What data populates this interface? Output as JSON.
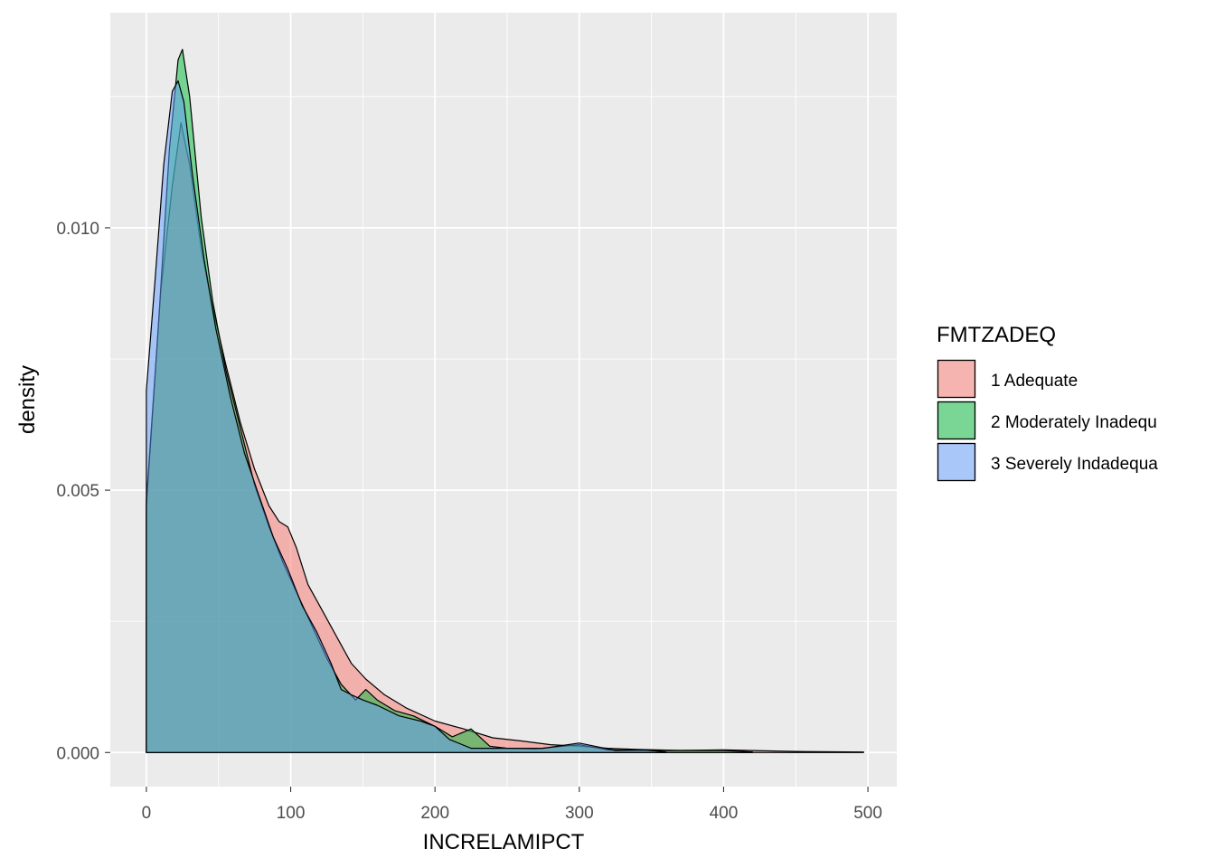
{
  "chart_data": {
    "type": "area",
    "subtype": "density",
    "title": "",
    "xlabel": "INCRELAMIPCT",
    "ylabel": "density",
    "xlim": [
      -25,
      520
    ],
    "ylim": [
      -0.00065,
      0.0141
    ],
    "x_ticks": [
      0,
      100,
      200,
      300,
      400,
      500
    ],
    "x_tick_labels": [
      "0",
      "100",
      "200",
      "300",
      "400",
      "500"
    ],
    "y_ticks": [
      0.0,
      0.005,
      0.01
    ],
    "y_tick_labels": [
      "0.000",
      "0.005",
      "0.010"
    ],
    "grid": true,
    "legend": {
      "title": "FMTZADEQ",
      "position": "right",
      "entries": [
        "1 Adequate",
        "2 Moderately Inadequ",
        "3 Severely Indadequa"
      ]
    },
    "series": [
      {
        "name": "1 Adequate",
        "color": "#F8766D",
        "points": [
          [
            0,
            0.0048
          ],
          [
            10,
            0.0088
          ],
          [
            18,
            0.0108
          ],
          [
            24,
            0.012
          ],
          [
            30,
            0.0112
          ],
          [
            38,
            0.0096
          ],
          [
            45,
            0.0086
          ],
          [
            55,
            0.0074
          ],
          [
            65,
            0.0063
          ],
          [
            75,
            0.0054
          ],
          [
            85,
            0.0047
          ],
          [
            92,
            0.0044
          ],
          [
            98,
            0.0043
          ],
          [
            104,
            0.0039
          ],
          [
            112,
            0.0032
          ],
          [
            122,
            0.0027
          ],
          [
            132,
            0.0022
          ],
          [
            142,
            0.0017
          ],
          [
            152,
            0.0014
          ],
          [
            165,
            0.0011
          ],
          [
            180,
            0.00085
          ],
          [
            200,
            0.0006
          ],
          [
            220,
            0.00045
          ],
          [
            240,
            0.00028
          ],
          [
            260,
            0.00022
          ],
          [
            280,
            0.00015
          ],
          [
            300,
            0.00012
          ],
          [
            320,
            8e-05
          ],
          [
            340,
            6e-05
          ],
          [
            370,
            4e-05
          ],
          [
            400,
            5e-05
          ],
          [
            450,
            2e-05
          ],
          [
            497,
            1e-05
          ]
        ]
      },
      {
        "name": "2 Moderately Inadequ",
        "color": "#00BA38",
        "points": [
          [
            0,
            0.0047
          ],
          [
            8,
            0.008
          ],
          [
            16,
            0.0115
          ],
          [
            22,
            0.0132
          ],
          [
            25,
            0.0134
          ],
          [
            30,
            0.0125
          ],
          [
            38,
            0.0102
          ],
          [
            46,
            0.0086
          ],
          [
            55,
            0.0073
          ],
          [
            65,
            0.0062
          ],
          [
            75,
            0.0051
          ],
          [
            85,
            0.0043
          ],
          [
            95,
            0.0036
          ],
          [
            105,
            0.003
          ],
          [
            115,
            0.0024
          ],
          [
            125,
            0.0018
          ],
          [
            135,
            0.0013
          ],
          [
            145,
            0.001
          ],
          [
            152,
            0.0012
          ],
          [
            160,
            0.001
          ],
          [
            172,
            0.0008
          ],
          [
            185,
            0.0007
          ],
          [
            200,
            0.0005
          ],
          [
            212,
            0.0003
          ],
          [
            225,
            0.00045
          ],
          [
            238,
            0.00012
          ],
          [
            250,
            8e-05
          ],
          [
            270,
            7e-05
          ],
          [
            300,
            0.00015
          ],
          [
            320,
            5e-05
          ],
          [
            350,
            4e-05
          ],
          [
            400,
            4e-05
          ],
          [
            420,
            1e-05
          ]
        ]
      },
      {
        "name": "3 Severely Indadequa",
        "color": "#619CFF",
        "points": [
          [
            0,
            0.0069
          ],
          [
            6,
            0.009
          ],
          [
            12,
            0.0112
          ],
          [
            18,
            0.0126
          ],
          [
            22,
            0.0128
          ],
          [
            26,
            0.0124
          ],
          [
            32,
            0.011
          ],
          [
            40,
            0.0094
          ],
          [
            48,
            0.0081
          ],
          [
            58,
            0.0068
          ],
          [
            68,
            0.0057
          ],
          [
            78,
            0.0049
          ],
          [
            88,
            0.0041
          ],
          [
            98,
            0.0035
          ],
          [
            108,
            0.0028
          ],
          [
            118,
            0.0023
          ],
          [
            128,
            0.0017
          ],
          [
            135,
            0.0012
          ],
          [
            142,
            0.0011
          ],
          [
            150,
            0.001
          ],
          [
            160,
            0.0009
          ],
          [
            175,
            0.0007
          ],
          [
            190,
            0.0006
          ],
          [
            200,
            0.0005
          ],
          [
            210,
            0.00025
          ],
          [
            225,
            8e-05
          ],
          [
            250,
            8e-05
          ],
          [
            275,
            8e-05
          ],
          [
            300,
            0.00018
          ],
          [
            325,
            4e-05
          ],
          [
            345,
            5e-05
          ],
          [
            360,
            1e-05
          ]
        ]
      }
    ]
  }
}
